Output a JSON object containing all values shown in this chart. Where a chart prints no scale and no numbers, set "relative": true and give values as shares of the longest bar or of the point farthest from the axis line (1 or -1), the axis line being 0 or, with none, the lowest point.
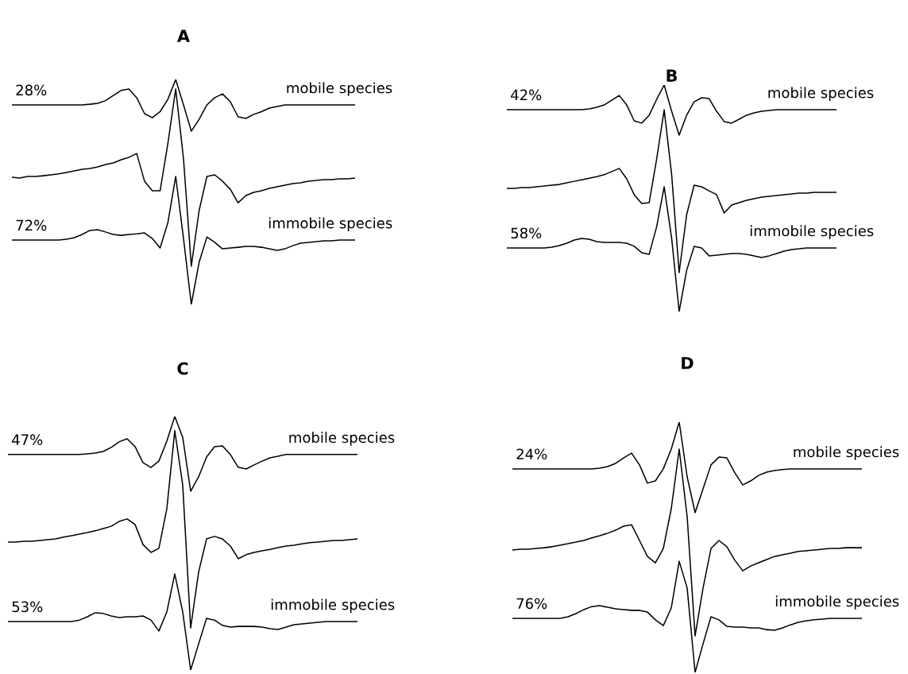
{
  "chart_data": [
    {
      "type": "line",
      "title": "A",
      "relative": true,
      "categories": [
        null,
        null,
        null,
        null,
        null,
        null,
        null,
        null,
        null,
        null,
        null,
        null,
        null,
        null,
        null,
        null,
        null,
        null,
        null,
        null,
        null,
        null,
        null,
        null,
        null,
        null,
        null,
        null,
        null,
        null,
        null,
        null,
        null,
        null,
        null,
        null,
        null,
        null,
        null,
        null,
        null,
        null,
        null,
        null,
        null
      ],
      "annotations": [
        "28%",
        "72%"
      ],
      "series": [
        {
          "name": "mobile species",
          "color": "#000000",
          "values": [
            0.887,
            0.887,
            0.887,
            0.887,
            0.887,
            0.887,
            0.887,
            0.887,
            0.887,
            0.887,
            0.89,
            0.894,
            0.906,
            0.929,
            0.951,
            0.958,
            0.919,
            0.848,
            0.83,
            0.857,
            0.912,
            1.0,
            0.887,
            0.77,
            0.823,
            0.887,
            0.919,
            0.936,
            0.901,
            0.834,
            0.827,
            0.845,
            0.857,
            0.873,
            0.88,
            0.887,
            0.887,
            0.887,
            0.887,
            0.887,
            0.887,
            0.887,
            0.887,
            0.887,
            0.887
          ]
        },
        {
          "color": "#000000",
          "values": [
            0.565,
            0.562,
            0.569,
            0.569,
            0.572,
            0.576,
            0.58,
            0.587,
            0.594,
            0.601,
            0.604,
            0.611,
            0.622,
            0.629,
            0.643,
            0.654,
            0.671,
            0.548,
            0.505,
            0.505,
            0.717,
            0.958,
            0.647,
            0.17,
            0.417,
            0.569,
            0.576,
            0.548,
            0.512,
            0.452,
            0.484,
            0.498,
            0.505,
            0.516,
            0.523,
            0.53,
            0.537,
            0.541,
            0.548,
            0.551,
            0.555,
            0.555,
            0.558,
            0.558,
            0.562
          ]
        },
        {
          "name": "immobile species",
          "color": "#000000",
          "values": [
            0.286,
            0.286,
            0.286,
            0.286,
            0.286,
            0.286,
            0.286,
            0.29,
            0.297,
            0.311,
            0.329,
            0.332,
            0.322,
            0.311,
            0.307,
            0.311,
            0.314,
            0.318,
            0.293,
            0.251,
            0.364,
            0.569,
            0.293,
            0,
            0.187,
            0.3,
            0.276,
            0.247,
            0.251,
            0.254,
            0.258,
            0.258,
            0.254,
            0.247,
            0.24,
            0.247,
            0.261,
            0.272,
            0.276,
            0.279,
            0.283,
            0.283,
            0.286,
            0.286,
            0.286
          ]
        }
      ]
    },
    {
      "type": "line",
      "title": "B",
      "relative": true,
      "categories": [
        null,
        null,
        null,
        null,
        null,
        null,
        null,
        null,
        null,
        null,
        null,
        null,
        null,
        null,
        null,
        null,
        null,
        null,
        null,
        null,
        null,
        null,
        null,
        null,
        null,
        null,
        null,
        null,
        null,
        null,
        null,
        null,
        null,
        null,
        null,
        null,
        null,
        null,
        null,
        null,
        null,
        null,
        null,
        null,
        null
      ],
      "annotations": [
        "42%",
        "58%"
      ],
      "series": [
        {
          "name": "mobile species",
          "color": "#000000",
          "values": [
            0.891,
            0.891,
            0.891,
            0.891,
            0.891,
            0.891,
            0.891,
            0.891,
            0.891,
            0.891,
            0.891,
            0.895,
            0.902,
            0.912,
            0.933,
            0.954,
            0.912,
            0.842,
            0.832,
            0.867,
            0.937,
            1.0,
            0.884,
            0.779,
            0.867,
            0.926,
            0.944,
            0.94,
            0.884,
            0.839,
            0.832,
            0.849,
            0.867,
            0.877,
            0.884,
            0.888,
            0.891,
            0.891,
            0.891,
            0.891,
            0.891,
            0.891,
            0.891,
            0.891,
            0.891
          ]
        },
        {
          "color": "#000000",
          "values": [
            0.544,
            0.544,
            0.547,
            0.547,
            0.551,
            0.554,
            0.558,
            0.561,
            0.568,
            0.575,
            0.582,
            0.589,
            0.596,
            0.604,
            0.618,
            0.632,
            0.586,
            0.516,
            0.477,
            0.481,
            0.674,
            0.891,
            0.604,
            0.172,
            0.428,
            0.558,
            0.551,
            0.533,
            0.516,
            0.435,
            0.47,
            0.481,
            0.491,
            0.498,
            0.505,
            0.509,
            0.512,
            0.516,
            0.519,
            0.523,
            0.523,
            0.526,
            0.526,
            0.526,
            0.526
          ]
        },
        {
          "name": "immobile species",
          "color": "#000000",
          "values": [
            0.281,
            0.281,
            0.281,
            0.281,
            0.281,
            0.281,
            0.284,
            0.291,
            0.302,
            0.316,
            0.323,
            0.319,
            0.309,
            0.305,
            0.305,
            0.305,
            0.302,
            0.288,
            0.26,
            0.253,
            0.375,
            0.551,
            0.323,
            0,
            0.182,
            0.288,
            0.281,
            0.246,
            0.249,
            0.253,
            0.256,
            0.256,
            0.253,
            0.246,
            0.239,
            0.246,
            0.256,
            0.267,
            0.274,
            0.277,
            0.281,
            0.281,
            0.281,
            0.281,
            0.281
          ]
        }
      ]
    },
    {
      "type": "line",
      "title": "C",
      "relative": true,
      "categories": [
        null,
        null,
        null,
        null,
        null,
        null,
        null,
        null,
        null,
        null,
        null,
        null,
        null,
        null,
        null,
        null,
        null,
        null,
        null,
        null,
        null,
        null,
        null,
        null,
        null,
        null,
        null,
        null,
        null,
        null,
        null,
        null,
        null,
        null,
        null,
        null,
        null,
        null,
        null,
        null,
        null,
        null,
        null,
        null,
        null
      ],
      "annotations": [
        "47%",
        "53%"
      ],
      "series": [
        {
          "name": "mobile species",
          "color": "#000000",
          "values": [
            0.85,
            0.85,
            0.85,
            0.85,
            0.85,
            0.85,
            0.85,
            0.85,
            0.85,
            0.85,
            0.853,
            0.856,
            0.862,
            0.878,
            0.9,
            0.912,
            0.881,
            0.818,
            0.799,
            0.824,
            0.903,
            1.0,
            0.918,
            0.705,
            0.762,
            0.84,
            0.881,
            0.884,
            0.85,
            0.799,
            0.793,
            0.809,
            0.824,
            0.837,
            0.843,
            0.85,
            0.85,
            0.85,
            0.85,
            0.85,
            0.85,
            0.85,
            0.85,
            0.85,
            0.85
          ]
        },
        {
          "color": "#000000",
          "values": [
            0.505,
            0.505,
            0.508,
            0.508,
            0.511,
            0.514,
            0.517,
            0.524,
            0.53,
            0.536,
            0.542,
            0.549,
            0.558,
            0.567,
            0.586,
            0.596,
            0.574,
            0.495,
            0.464,
            0.48,
            0.636,
            0.944,
            0.73,
            0.166,
            0.386,
            0.517,
            0.527,
            0.517,
            0.489,
            0.439,
            0.455,
            0.464,
            0.47,
            0.476,
            0.483,
            0.489,
            0.492,
            0.498,
            0.502,
            0.505,
            0.508,
            0.511,
            0.511,
            0.514,
            0.517
          ]
        },
        {
          "name": "immobile species",
          "color": "#000000",
          "values": [
            0.191,
            0.191,
            0.191,
            0.191,
            0.191,
            0.191,
            0.191,
            0.191,
            0.191,
            0.197,
            0.21,
            0.226,
            0.223,
            0.213,
            0.207,
            0.21,
            0.21,
            0.213,
            0.197,
            0.154,
            0.229,
            0.379,
            0.229,
            0,
            0.103,
            0.204,
            0.197,
            0.176,
            0.169,
            0.172,
            0.172,
            0.172,
            0.169,
            0.163,
            0.16,
            0.169,
            0.179,
            0.182,
            0.185,
            0.188,
            0.191,
            0.191,
            0.191,
            0.191,
            0.191
          ]
        }
      ]
    },
    {
      "type": "line",
      "title": "D",
      "relative": true,
      "categories": [
        null,
        null,
        null,
        null,
        null,
        null,
        null,
        null,
        null,
        null,
        null,
        null,
        null,
        null,
        null,
        null,
        null,
        null,
        null,
        null,
        null,
        null,
        null,
        null,
        null,
        null,
        null,
        null,
        null,
        null,
        null,
        null,
        null,
        null,
        null,
        null,
        null,
        null,
        null,
        null,
        null,
        null,
        null,
        null,
        null
      ],
      "annotations": [
        "24%",
        "76%"
      ],
      "series": [
        {
          "name": "mobile species",
          "color": "#000000",
          "values": [
            0.813,
            0.813,
            0.813,
            0.813,
            0.813,
            0.813,
            0.813,
            0.813,
            0.813,
            0.813,
            0.813,
            0.816,
            0.822,
            0.835,
            0.857,
            0.876,
            0.829,
            0.756,
            0.765,
            0.813,
            0.892,
            1.0,
            0.781,
            0.638,
            0.733,
            0.829,
            0.86,
            0.857,
            0.797,
            0.749,
            0.765,
            0.787,
            0.8,
            0.806,
            0.81,
            0.813,
            0.813,
            0.813,
            0.813,
            0.813,
            0.813,
            0.813,
            0.813,
            0.813,
            0.813
          ]
        },
        {
          "color": "#000000",
          "values": [
            0.489,
            0.492,
            0.492,
            0.495,
            0.498,
            0.502,
            0.508,
            0.514,
            0.521,
            0.527,
            0.537,
            0.546,
            0.556,
            0.568,
            0.584,
            0.59,
            0.527,
            0.463,
            0.438,
            0.495,
            0.654,
            0.892,
            0.622,
            0.146,
            0.337,
            0.495,
            0.527,
            0.502,
            0.448,
            0.406,
            0.425,
            0.438,
            0.451,
            0.463,
            0.47,
            0.476,
            0.483,
            0.486,
            0.489,
            0.492,
            0.495,
            0.495,
            0.498,
            0.498,
            0.498
          ]
        },
        {
          "name": "immobile species",
          "color": "#000000",
          "values": [
            0.216,
            0.216,
            0.216,
            0.216,
            0.216,
            0.216,
            0.216,
            0.222,
            0.235,
            0.251,
            0.263,
            0.267,
            0.26,
            0.254,
            0.251,
            0.248,
            0.248,
            0.241,
            0.21,
            0.187,
            0.257,
            0.444,
            0.337,
            0,
            0.114,
            0.222,
            0.21,
            0.184,
            0.181,
            0.181,
            0.178,
            0.178,
            0.171,
            0.168,
            0.178,
            0.19,
            0.2,
            0.206,
            0.21,
            0.213,
            0.216,
            0.216,
            0.216,
            0.216,
            0.216
          ]
        }
      ]
    }
  ]
}
